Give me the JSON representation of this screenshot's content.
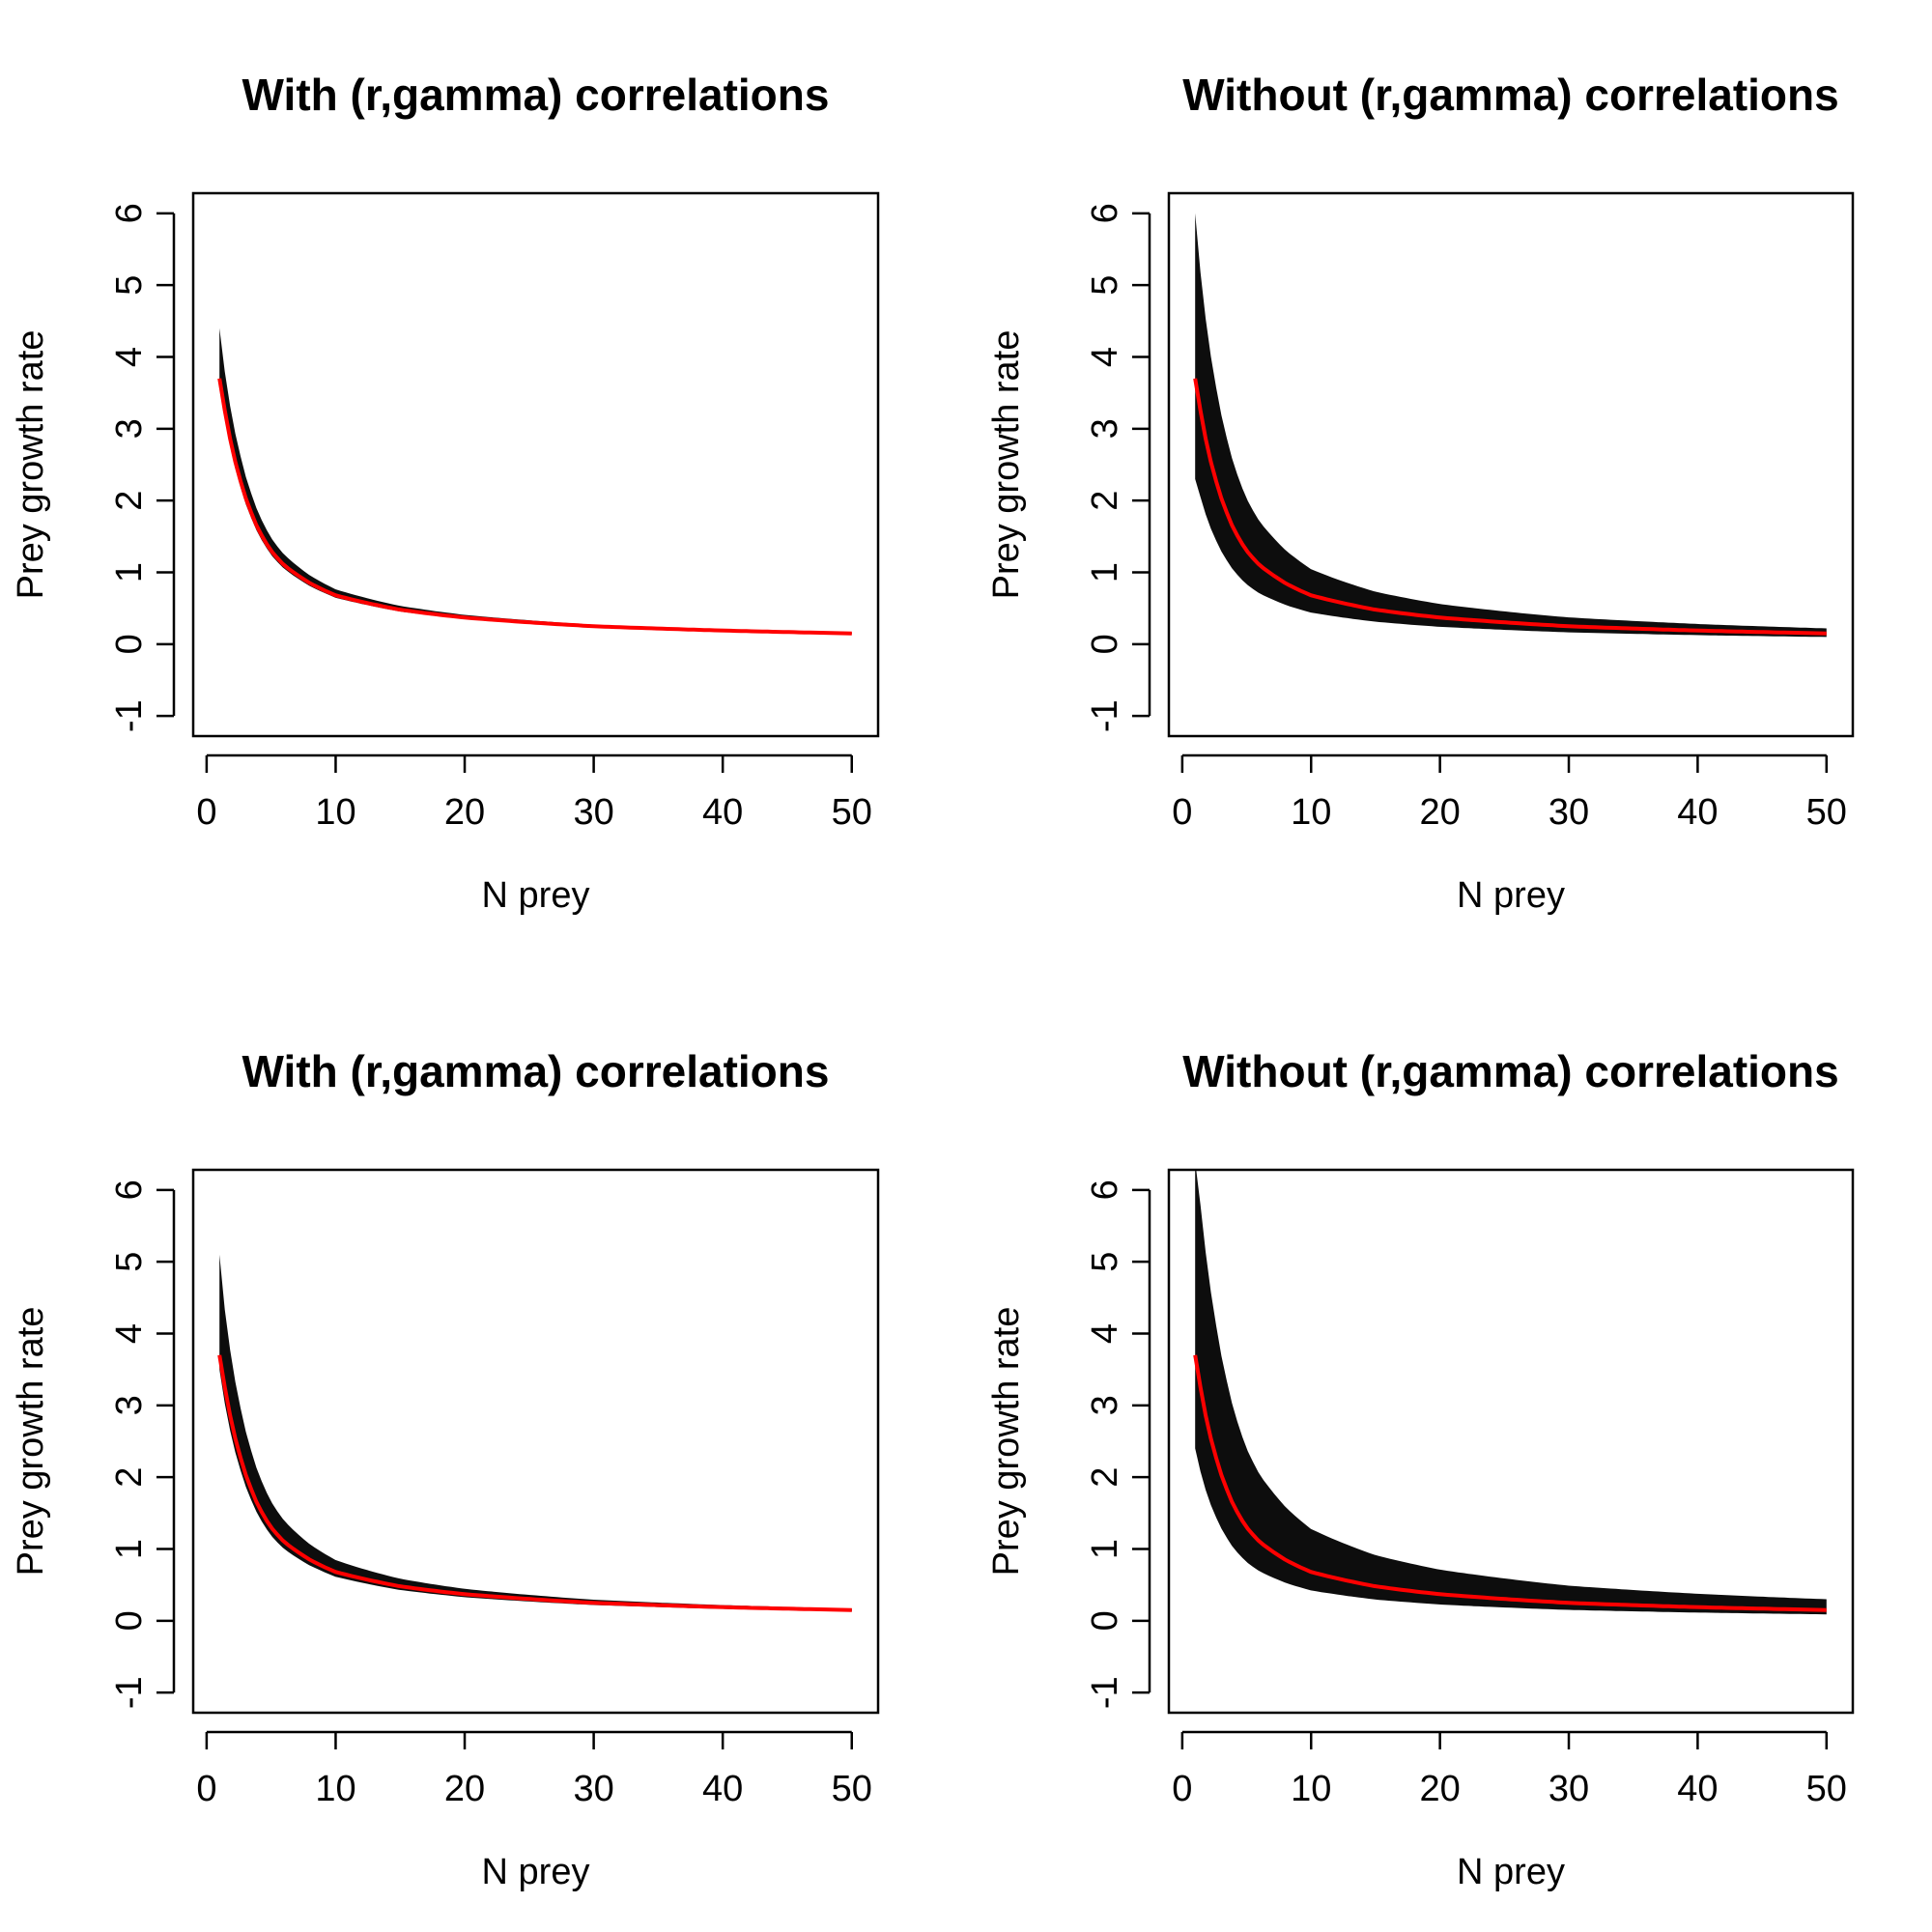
{
  "chart_data": [
    {
      "type": "line",
      "title": "With (r,gamma) correlations",
      "xlabel": "N prey",
      "ylabel": "Prey growth rate",
      "xlim": [
        0,
        50
      ],
      "ylim": [
        -1,
        6
      ],
      "xticks": [
        "0",
        "10",
        "20",
        "30",
        "40",
        "50"
      ],
      "yticks": [
        "-1",
        "0",
        "1",
        "2",
        "3",
        "4",
        "5",
        "6"
      ],
      "grid": false,
      "colors": {
        "samples": "#000000",
        "mean": "#ff0000"
      },
      "series": [
        {
          "x": [
            1,
            2,
            3,
            4,
            5,
            6,
            8,
            10,
            15,
            20,
            30,
            40,
            50
          ],
          "y": [
            3.7,
            2.7,
            2.05,
            1.6,
            1.3,
            1.1,
            0.85,
            0.68,
            0.48,
            0.37,
            0.25,
            0.19,
            0.15
          ]
        }
      ],
      "sample_envelope": {
        "x": [
          1,
          50
        ],
        "y_upper": [
          4.4,
          0.16
        ],
        "y_lower": [
          3.6,
          0.14
        ]
      }
    },
    {
      "type": "line",
      "title": "Without (r,gamma) correlations",
      "xlabel": "N prey",
      "ylabel": "Prey growth rate",
      "xlim": [
        0,
        50
      ],
      "ylim": [
        -1,
        6
      ],
      "xticks": [
        "0",
        "10",
        "20",
        "30",
        "40",
        "50"
      ],
      "yticks": [
        "-1",
        "0",
        "1",
        "2",
        "3",
        "4",
        "5",
        "6"
      ],
      "grid": false,
      "colors": {
        "samples": "#000000",
        "mean": "#ff0000"
      },
      "series": [
        {
          "x": [
            1,
            2,
            3,
            4,
            5,
            6,
            8,
            10,
            15,
            20,
            30,
            40,
            50
          ],
          "y": [
            3.7,
            2.7,
            2.05,
            1.6,
            1.3,
            1.1,
            0.85,
            0.68,
            0.48,
            0.37,
            0.25,
            0.19,
            0.15
          ]
        }
      ],
      "sample_envelope": {
        "x": [
          1,
          50
        ],
        "y_upper": [
          6.0,
          0.22
        ],
        "y_lower": [
          2.3,
          0.1
        ]
      }
    },
    {
      "type": "line",
      "title": "With (r,gamma) correlations",
      "xlabel": "N prey",
      "ylabel": "Prey growth rate",
      "xlim": [
        0,
        50
      ],
      "ylim": [
        -1,
        6
      ],
      "xticks": [
        "0",
        "10",
        "20",
        "30",
        "40",
        "50"
      ],
      "yticks": [
        "-1",
        "0",
        "1",
        "2",
        "3",
        "4",
        "5",
        "6"
      ],
      "grid": false,
      "colors": {
        "samples": "#000000",
        "mean": "#ff0000"
      },
      "series": [
        {
          "x": [
            1,
            2,
            3,
            4,
            5,
            6,
            8,
            10,
            15,
            20,
            30,
            40,
            50
          ],
          "y": [
            3.7,
            2.7,
            2.05,
            1.6,
            1.3,
            1.1,
            0.85,
            0.68,
            0.48,
            0.37,
            0.25,
            0.19,
            0.15
          ]
        }
      ],
      "sample_envelope": {
        "x": [
          1,
          50
        ],
        "y_upper": [
          5.1,
          0.17
        ],
        "y_lower": [
          3.5,
          0.13
        ]
      }
    },
    {
      "type": "line",
      "title": "Without (r,gamma) correlations",
      "xlabel": "N prey",
      "ylabel": "Prey growth rate",
      "xlim": [
        0,
        50
      ],
      "ylim": [
        -1,
        6
      ],
      "xticks": [
        "0",
        "10",
        "20",
        "30",
        "40",
        "50"
      ],
      "yticks": [
        "-1",
        "0",
        "1",
        "2",
        "3",
        "4",
        "5",
        "6"
      ],
      "grid": false,
      "colors": {
        "samples": "#000000",
        "mean": "#ff0000"
      },
      "series": [
        {
          "x": [
            1,
            2,
            3,
            4,
            5,
            6,
            8,
            10,
            15,
            20,
            30,
            40,
            50
          ],
          "y": [
            3.7,
            2.7,
            2.05,
            1.6,
            1.3,
            1.1,
            0.85,
            0.68,
            0.48,
            0.37,
            0.25,
            0.19,
            0.15
          ]
        }
      ],
      "sample_envelope": {
        "x": [
          1,
          50
        ],
        "y_upper": [
          6.4,
          0.3
        ],
        "y_lower": [
          2.4,
          0.09
        ]
      }
    }
  ]
}
